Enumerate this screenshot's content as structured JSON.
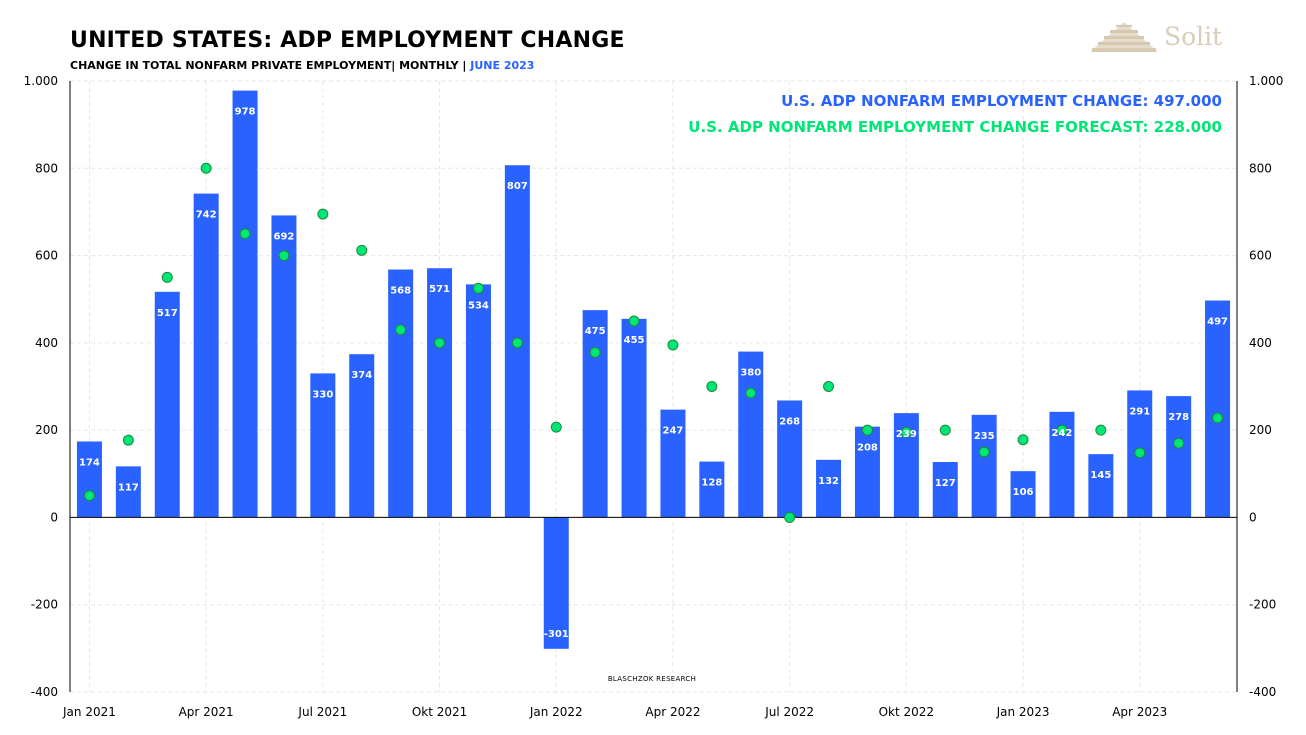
{
  "title": "UNITED STATES: ADP EMPLOYMENT CHANGE",
  "subtitle_main": "CHANGE IN TOTAL NONFARM PRIVATE EMPLOYMENT| MONTHLY | ",
  "subtitle_highlight": "JUNE 2023",
  "logo_text": "Solit",
  "legend": {
    "actual": "U.S. ADP NONFARM EMPLOYMENT CHANGE: 497.000",
    "forecast": "U.S. ADP NONFARM EMPLOYMENT CHANGE FORECAST: 228.000"
  },
  "source": "BLASCHZOK RESEARCH",
  "colors": {
    "bars": "#2962ff",
    "forecast": "#00e676",
    "forecast_stroke": "#1b8a3a",
    "grid": "#e6e6e6"
  },
  "chart_data": {
    "type": "bar",
    "title": "UNITED STATES: ADP EMPLOYMENT CHANGE",
    "subtitle": "CHANGE IN TOTAL NONFARM PRIVATE EMPLOYMENT| MONTHLY | JUNE 2023",
    "ylim": [
      -400,
      1000
    ],
    "y_ticks": [
      -400,
      -200,
      0,
      200,
      400,
      600,
      800,
      1000
    ],
    "y_tick_labels": [
      "-400",
      "-200",
      "0",
      "200",
      "400",
      "600",
      "800",
      "1.000"
    ],
    "y_axis": "left and right",
    "grid": true,
    "x_tick_labels": [
      {
        "label": "Jan 2021",
        "index": 0
      },
      {
        "label": "Apr 2021",
        "index": 3
      },
      {
        "label": "Jul 2021",
        "index": 6
      },
      {
        "label": "Okt 2021",
        "index": 9
      },
      {
        "label": "Jan 2022",
        "index": 12
      },
      {
        "label": "Apr 2022",
        "index": 15
      },
      {
        "label": "Jul 2022",
        "index": 18
      },
      {
        "label": "Okt 2022",
        "index": 21
      },
      {
        "label": "Jan 2023",
        "index": 24
      },
      {
        "label": "Apr 2023",
        "index": 27
      }
    ],
    "categories": [
      "2021-01",
      "2021-02",
      "2021-03",
      "2021-04",
      "2021-05",
      "2021-06",
      "2021-07",
      "2021-08",
      "2021-09",
      "2021-10",
      "2021-11",
      "2021-12",
      "2022-01",
      "2022-02",
      "2022-03",
      "2022-04",
      "2022-05",
      "2022-06",
      "2022-07",
      "2022-08",
      "2022-09",
      "2022-10",
      "2022-11",
      "2022-12",
      "2023-01",
      "2023-02",
      "2023-03",
      "2023-04",
      "2023-05",
      "2023-06"
    ],
    "series": [
      {
        "name": "U.S. ADP NONFARM EMPLOYMENT CHANGE",
        "kind": "bar",
        "values": [
          174,
          117,
          517,
          742,
          978,
          692,
          330,
          374,
          568,
          571,
          534,
          807,
          -301,
          475,
          455,
          247,
          128,
          380,
          268,
          132,
          208,
          239,
          127,
          235,
          106,
          242,
          145,
          291,
          278,
          497
        ],
        "labels": [
          "174",
          "117",
          "517",
          "742",
          "978",
          "692",
          "330",
          "374",
          "568",
          "571",
          "534",
          "807",
          "-301",
          "475",
          "455",
          "247",
          "128",
          "380",
          "268",
          "132",
          "208",
          "239",
          "127",
          "235",
          "106",
          "242",
          "145",
          "291",
          "278",
          "497"
        ]
      },
      {
        "name": "U.S. ADP NONFARM EMPLOYMENT CHANGE FORECAST",
        "kind": "scatter",
        "values": [
          50,
          177,
          550,
          800,
          650,
          600,
          695,
          612,
          430,
          400,
          525,
          400,
          207,
          378,
          450,
          395,
          300,
          285,
          0,
          300,
          200,
          195,
          200,
          150,
          178,
          200,
          200,
          148,
          170,
          228
        ]
      }
    ]
  }
}
